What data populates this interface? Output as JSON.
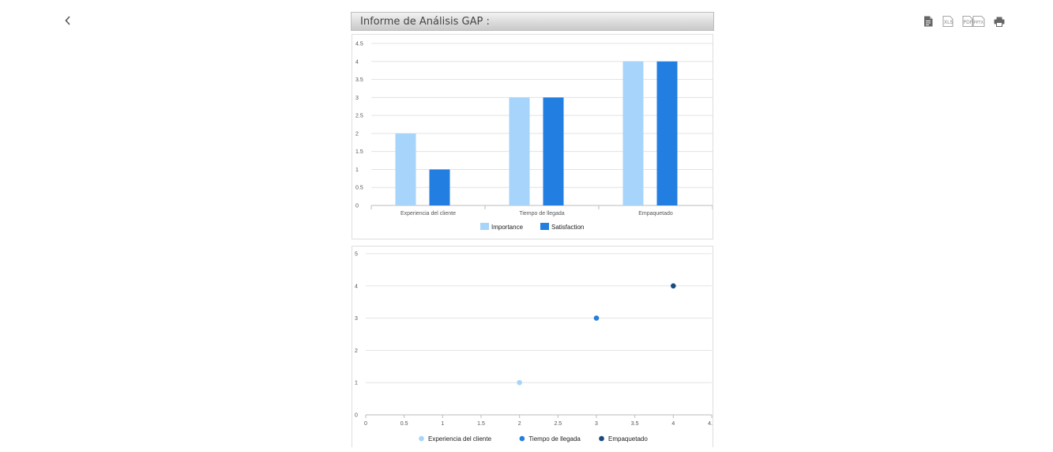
{
  "nav": {
    "back_icon": "chevron-left-icon"
  },
  "toolbar": {
    "items": [
      {
        "icon": "document-icon",
        "label": ""
      },
      {
        "icon": "xls-icon",
        "label": "XLS"
      },
      {
        "icon": "pdf-icon",
        "label": "PDF"
      },
      {
        "icon": "pptx-icon",
        "label": "PPTX"
      },
      {
        "icon": "print-icon",
        "label": ""
      }
    ]
  },
  "report": {
    "title": "Informe de Análisis GAP :"
  },
  "chart_data": [
    {
      "type": "bar",
      "categories": [
        "Experiencia del cliente",
        "Tiempo de llegada",
        "Empaquetado"
      ],
      "series": [
        {
          "name": "Importance",
          "values": [
            2,
            3,
            4
          ],
          "color": "#a6d4fb"
        },
        {
          "name": "Satisfaction",
          "values": [
            1,
            3,
            4
          ],
          "color": "#227ee0"
        }
      ],
      "ylim": [
        0,
        4.5
      ],
      "yticks": [
        "0",
        "0.5",
        "1",
        "1.5",
        "2",
        "2.5",
        "3",
        "3.5",
        "4",
        "4.5"
      ],
      "grid": true,
      "legend": "bottom"
    },
    {
      "type": "scatter",
      "series": [
        {
          "name": "Experiencia del cliente",
          "x": 2,
          "y": 1,
          "color": "#a6d4fb"
        },
        {
          "name": "Tiempo de llegada",
          "x": 3,
          "y": 3,
          "color": "#227ee0"
        },
        {
          "name": "Empaquetado",
          "x": 4,
          "y": 4,
          "color": "#1a4a80"
        }
      ],
      "xlim": [
        0,
        4.5
      ],
      "ylim": [
        0,
        5
      ],
      "xticks": [
        "0",
        "0.5",
        "1",
        "1.5",
        "2",
        "2.5",
        "3",
        "3.5",
        "4",
        "4.5"
      ],
      "yticks": [
        "0",
        "1",
        "2",
        "3",
        "4",
        "5"
      ],
      "grid": true,
      "legend": "bottom"
    }
  ]
}
